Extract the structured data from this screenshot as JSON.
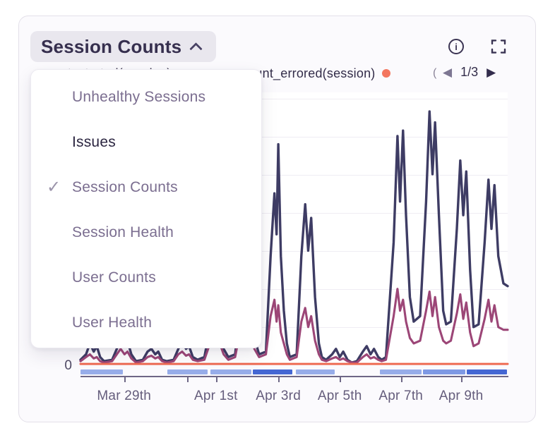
{
  "card": {
    "title": "Session Counts"
  },
  "toolbar": {
    "info_glyph": "i"
  },
  "legend": {
    "items": [
      {
        "label": "count_started(session)",
        "dot_color": "#9c4677",
        "note": "mostly hidden behind open dropdown"
      },
      {
        "label": "count_errored(session)",
        "dot_color": "#f3765f"
      }
    ],
    "clipped_fragment": "(",
    "pagination": {
      "label": "1/3",
      "prev_glyph": "◀",
      "next_glyph": "▶",
      "prev_enabled": false,
      "next_enabled": true
    }
  },
  "dropdown": {
    "checkmark": "✓",
    "items": [
      {
        "label": "Unhealthy Sessions",
        "selected": false,
        "highlighted": false
      },
      {
        "label": "Issues",
        "selected": false,
        "highlighted": true
      },
      {
        "label": "Session Counts",
        "selected": true,
        "highlighted": false
      },
      {
        "label": "Session Health",
        "selected": false,
        "highlighted": false
      },
      {
        "label": "User Counts",
        "selected": false,
        "highlighted": false
      },
      {
        "label": "User Health",
        "selected": false,
        "highlighted": false
      }
    ]
  },
  "chart_data": {
    "type": "line",
    "title": "Session Counts",
    "x_axis": {
      "range_visible": "Mar 28 - Apr 10",
      "ticks": [
        {
          "pct": 10.2,
          "label": "Mar 29th"
        },
        {
          "pct": 25.0,
          "label": ""
        },
        {
          "pct": 31.7,
          "label": "Apr 1st"
        },
        {
          "pct": 46.3,
          "label": "Apr 3rd"
        },
        {
          "pct": 60.7,
          "label": "Apr 5th"
        },
        {
          "pct": 75.0,
          "label": "Apr 7th"
        },
        {
          "pct": 89.1,
          "label": "Apr 9th"
        }
      ]
    },
    "y_axis": {
      "tick_labels": [
        "0"
      ],
      "min": 0,
      "note": "only 0 labeled; series values stored as percent of plot height"
    },
    "grid": true,
    "legend_position": "top",
    "series": [
      {
        "name": "unlabeled (navy line, legend on another page)",
        "color": "#3e3c64",
        "stroke": 3.4,
        "points_pct": [
          [
            0,
            2
          ],
          [
            1.3,
            4
          ],
          [
            2.2,
            8
          ],
          [
            3.1,
            5
          ],
          [
            3.8,
            7
          ],
          [
            4.6,
            3
          ],
          [
            5.5,
            1.5
          ],
          [
            7.4,
            2
          ],
          [
            8.5,
            6
          ],
          [
            9.4,
            10
          ],
          [
            10.3,
            7
          ],
          [
            11,
            9
          ],
          [
            11.9,
            4
          ],
          [
            13,
            1.5
          ],
          [
            14.6,
            2
          ],
          [
            15.7,
            5
          ],
          [
            16.6,
            6
          ],
          [
            17.5,
            4
          ],
          [
            18.2,
            5
          ],
          [
            19.1,
            2
          ],
          [
            20.2,
            1.5
          ],
          [
            21.8,
            2
          ],
          [
            22.9,
            6
          ],
          [
            23.8,
            9
          ],
          [
            24.7,
            6
          ],
          [
            25.4,
            7
          ],
          [
            26.3,
            3
          ],
          [
            27.4,
            2
          ],
          [
            29,
            3
          ],
          [
            30.1,
            12
          ],
          [
            31,
            18
          ],
          [
            31.9,
            12
          ],
          [
            32.6,
            14
          ],
          [
            33.5,
            6
          ],
          [
            34.6,
            3
          ],
          [
            36.2,
            4
          ],
          [
            37.3,
            20
          ],
          [
            38.2,
            30
          ],
          [
            39.1,
            22
          ],
          [
            39.8,
            24
          ],
          [
            40.7,
            10
          ],
          [
            41.8,
            4
          ],
          [
            43.4,
            5
          ],
          [
            44.5,
            40
          ],
          [
            45.4,
            63
          ],
          [
            45.9,
            48
          ],
          [
            46.3,
            81
          ],
          [
            46.9,
            40
          ],
          [
            47.6,
            20
          ],
          [
            48.3,
            8
          ],
          [
            49,
            3
          ],
          [
            50.6,
            4
          ],
          [
            51.7,
            40
          ],
          [
            52.6,
            59
          ],
          [
            53.3,
            42
          ],
          [
            54,
            54
          ],
          [
            54.9,
            25
          ],
          [
            55.8,
            8
          ],
          [
            56.5,
            3
          ],
          [
            57.5,
            2
          ],
          [
            58.9,
            4
          ],
          [
            59.8,
            6
          ],
          [
            60.7,
            3
          ],
          [
            61.5,
            5
          ],
          [
            62.5,
            2
          ],
          [
            63.5,
            1
          ],
          [
            64.7,
            1.5
          ],
          [
            66.1,
            5
          ],
          [
            67,
            7
          ],
          [
            67.9,
            4
          ],
          [
            68.7,
            6
          ],
          [
            69.7,
            3
          ],
          [
            70.5,
            2
          ],
          [
            71.5,
            3
          ],
          [
            73.3,
            45
          ],
          [
            74.2,
            84
          ],
          [
            74.8,
            60
          ],
          [
            75.5,
            86
          ],
          [
            76.2,
            55
          ],
          [
            77.1,
            25
          ],
          [
            78,
            16
          ],
          [
            79.5,
            18
          ],
          [
            80.9,
            60
          ],
          [
            81.7,
            93
          ],
          [
            82.4,
            70
          ],
          [
            83,
            89
          ],
          [
            83.9,
            55
          ],
          [
            84.9,
            20
          ],
          [
            85.6,
            15
          ],
          [
            86.7,
            16
          ],
          [
            88.1,
            50
          ],
          [
            88.9,
            75
          ],
          [
            89.6,
            55
          ],
          [
            90.3,
            71
          ],
          [
            91.2,
            35
          ],
          [
            92,
            14
          ],
          [
            93.2,
            15
          ],
          [
            94.6,
            45
          ],
          [
            95.5,
            68
          ],
          [
            96.2,
            50
          ],
          [
            96.9,
            66
          ],
          [
            97.8,
            40
          ],
          [
            99,
            30
          ],
          [
            100,
            29
          ]
        ]
      },
      {
        "name": "count_started(session)",
        "color": "#9c4677",
        "stroke": 3.1,
        "points_pct": [
          [
            0,
            1.5
          ],
          [
            1.3,
            3
          ],
          [
            2.2,
            4
          ],
          [
            3.1,
            2.5
          ],
          [
            3.8,
            3
          ],
          [
            4.6,
            1.5
          ],
          [
            5.5,
            1
          ],
          [
            7.4,
            1.5
          ],
          [
            8.5,
            4
          ],
          [
            9.4,
            6
          ],
          [
            10.3,
            4
          ],
          [
            11,
            5
          ],
          [
            11.9,
            2.5
          ],
          [
            13,
            1
          ],
          [
            14.6,
            1.5
          ],
          [
            15.7,
            3
          ],
          [
            16.6,
            3.5
          ],
          [
            17.5,
            2.5
          ],
          [
            18.2,
            3
          ],
          [
            19.1,
            1.5
          ],
          [
            20.2,
            1
          ],
          [
            21.8,
            1.5
          ],
          [
            22.9,
            4
          ],
          [
            23.8,
            5
          ],
          [
            24.7,
            3.5
          ],
          [
            25.4,
            4
          ],
          [
            26.3,
            2
          ],
          [
            27.4,
            1.5
          ],
          [
            29,
            2
          ],
          [
            30.1,
            7
          ],
          [
            31,
            10
          ],
          [
            31.9,
            7
          ],
          [
            32.6,
            8
          ],
          [
            33.5,
            4
          ],
          [
            34.6,
            2
          ],
          [
            36.2,
            3
          ],
          [
            37.3,
            12
          ],
          [
            38.2,
            15
          ],
          [
            39.1,
            11
          ],
          [
            39.8,
            13
          ],
          [
            40.7,
            6
          ],
          [
            41.8,
            3
          ],
          [
            43.4,
            4
          ],
          [
            44.5,
            18
          ],
          [
            45.4,
            24
          ],
          [
            45.9,
            16
          ],
          [
            46.3,
            22
          ],
          [
            46.9,
            12
          ],
          [
            47.6,
            8
          ],
          [
            48.3,
            4
          ],
          [
            49,
            2
          ],
          [
            50.6,
            3
          ],
          [
            51.7,
            16
          ],
          [
            52.6,
            21
          ],
          [
            53.3,
            14
          ],
          [
            54,
            18
          ],
          [
            54.9,
            9
          ],
          [
            55.8,
            4
          ],
          [
            56.5,
            2
          ],
          [
            57.5,
            1.5
          ],
          [
            58.9,
            2.5
          ],
          [
            59.8,
            3
          ],
          [
            60.7,
            2
          ],
          [
            61.5,
            2.5
          ],
          [
            62.5,
            1.5
          ],
          [
            63.5,
            1
          ],
          [
            64.7,
            1
          ],
          [
            66.1,
            3
          ],
          [
            67,
            4
          ],
          [
            67.9,
            2.5
          ],
          [
            68.7,
            3
          ],
          [
            69.7,
            2
          ],
          [
            70.5,
            1.5
          ],
          [
            71.5,
            2
          ],
          [
            73.3,
            18
          ],
          [
            74.2,
            28
          ],
          [
            74.8,
            20
          ],
          [
            75.5,
            24
          ],
          [
            76.2,
            16
          ],
          [
            77.1,
            10
          ],
          [
            78,
            8
          ],
          [
            79.5,
            9
          ],
          [
            80.9,
            20
          ],
          [
            81.7,
            27
          ],
          [
            82.4,
            18
          ],
          [
            83,
            25
          ],
          [
            83.9,
            14
          ],
          [
            84.9,
            9
          ],
          [
            85.6,
            8
          ],
          [
            86.7,
            9
          ],
          [
            88.1,
            19
          ],
          [
            88.9,
            26
          ],
          [
            89.6,
            17
          ],
          [
            90.3,
            23
          ],
          [
            91.2,
            12
          ],
          [
            92,
            7
          ],
          [
            93.2,
            8
          ],
          [
            94.6,
            17
          ],
          [
            95.5,
            24
          ],
          [
            96.2,
            16
          ],
          [
            96.9,
            22
          ],
          [
            97.8,
            14
          ],
          [
            99,
            13
          ],
          [
            100,
            13
          ]
        ]
      },
      {
        "name": "count_errored(session)",
        "color": "#ee6a52",
        "stroke": 3,
        "points_pct": [
          [
            0,
            0.5
          ],
          [
            100,
            0.5
          ]
        ]
      }
    ],
    "annotation_bar": {
      "shades": {
        "light": "#97ade9",
        "medium": "#7e99e4",
        "dark": "#4467d3"
      },
      "segments": [
        {
          "start_pct": 0,
          "end_pct": 9.9,
          "shade": "light"
        },
        {
          "start_pct": 20.3,
          "end_pct": 29.8,
          "shade": "light"
        },
        {
          "start_pct": 30.4,
          "end_pct": 40.0,
          "shade": "light"
        },
        {
          "start_pct": 40.3,
          "end_pct": 49.6,
          "shade": "dark"
        },
        {
          "start_pct": 50.4,
          "end_pct": 59.5,
          "shade": "light"
        },
        {
          "start_pct": 70.1,
          "end_pct": 79.8,
          "shade": "light"
        },
        {
          "start_pct": 80.2,
          "end_pct": 90.1,
          "shade": "medium"
        },
        {
          "start_pct": 90.4,
          "end_pct": 99.8,
          "shade": "dark"
        }
      ]
    }
  }
}
